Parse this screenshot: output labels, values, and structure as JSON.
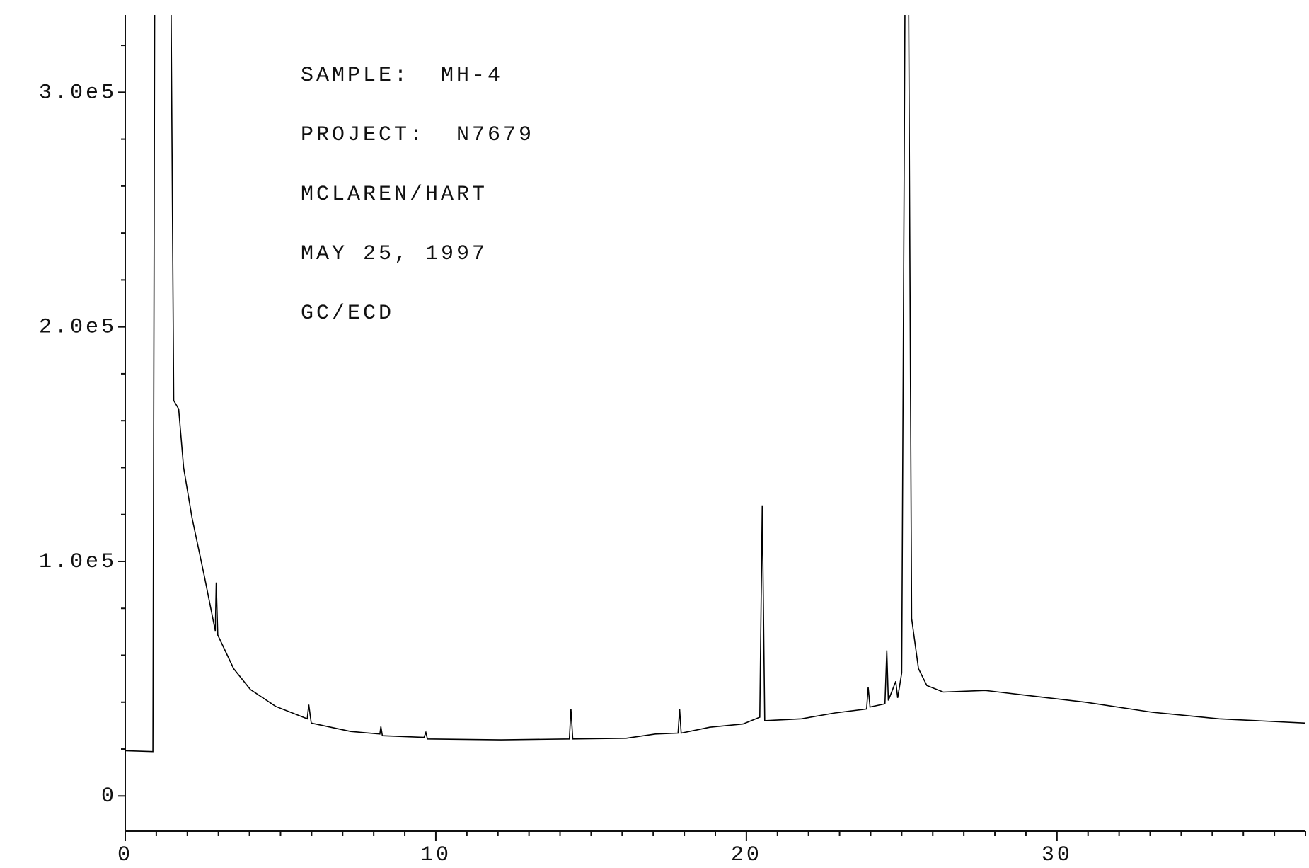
{
  "chart_data": {
    "type": "line",
    "annotations": [
      "SAMPLE:  MH-4",
      "PROJECT:  N7679",
      "MCLAREN/HART",
      "MAY 25, 1997",
      "GC/ECD"
    ],
    "x": [
      0,
      0.89,
      0.95,
      1.47,
      1.56,
      1.72,
      1.88,
      2.15,
      2.55,
      2.9,
      2.93,
      2.98,
      3.49,
      4.03,
      4.84,
      5.86,
      5.91,
      5.99,
      7.26,
      8.2,
      8.23,
      8.28,
      9.62,
      9.68,
      9.73,
      12.1,
      14.3,
      14.35,
      14.41,
      16.13,
      17.07,
      17.8,
      17.85,
      17.9,
      18.82,
      19.89,
      20.43,
      20.51,
      20.59,
      21.77,
      22.85,
      23.87,
      23.92,
      23.98,
      24.46,
      24.52,
      24.57,
      24.81,
      24.87,
      25.0,
      25.11,
      25.22,
      25.32,
      25.54,
      25.81,
      26.34,
      27.69,
      29.03,
      30.91,
      33.06,
      35.22,
      38
    ],
    "values": [
      19300,
      18900,
      350000,
      350000,
      168600,
      165000,
      140000,
      118600,
      93600,
      70400,
      91000,
      68600,
      54300,
      45400,
      38200,
      32900,
      38900,
      31100,
      27500,
      26400,
      29600,
      25700,
      25000,
      27100,
      24300,
      23900,
      24300,
      37100,
      24300,
      24600,
      26400,
      26800,
      37100,
      26800,
      29300,
      30700,
      33600,
      123900,
      32100,
      32900,
      35400,
      37100,
      46400,
      37900,
      39300,
      62100,
      40700,
      48900,
      41800,
      52500,
      350000,
      350000,
      75700,
      54300,
      47100,
      44300,
      45000,
      42900,
      40000,
      35700,
      32900,
      31100
    ],
    "color": "#000000",
    "xlim": [
      0,
      38
    ],
    "xticks": [
      0,
      10,
      20,
      30
    ],
    "xminor": [
      1,
      2,
      3,
      4,
      5,
      6,
      7,
      8,
      9,
      11,
      12,
      13,
      14,
      15,
      16,
      17,
      18,
      19,
      21,
      22,
      23,
      24,
      25,
      26,
      27,
      28,
      29,
      31,
      32,
      33,
      34,
      35,
      36,
      37,
      38
    ],
    "ylim": [
      -15000,
      333000
    ],
    "yticks": [
      0,
      {
        "value": 100000,
        "label": "1.0e5"
      },
      {
        "value": 200000,
        "label": "2.0e5"
      },
      {
        "value": 300000,
        "label": "3.0e5"
      }
    ],
    "yminor": [
      20000,
      40000,
      60000,
      80000,
      120000,
      140000,
      160000,
      180000,
      220000,
      240000,
      260000,
      280000,
      320000
    ]
  }
}
